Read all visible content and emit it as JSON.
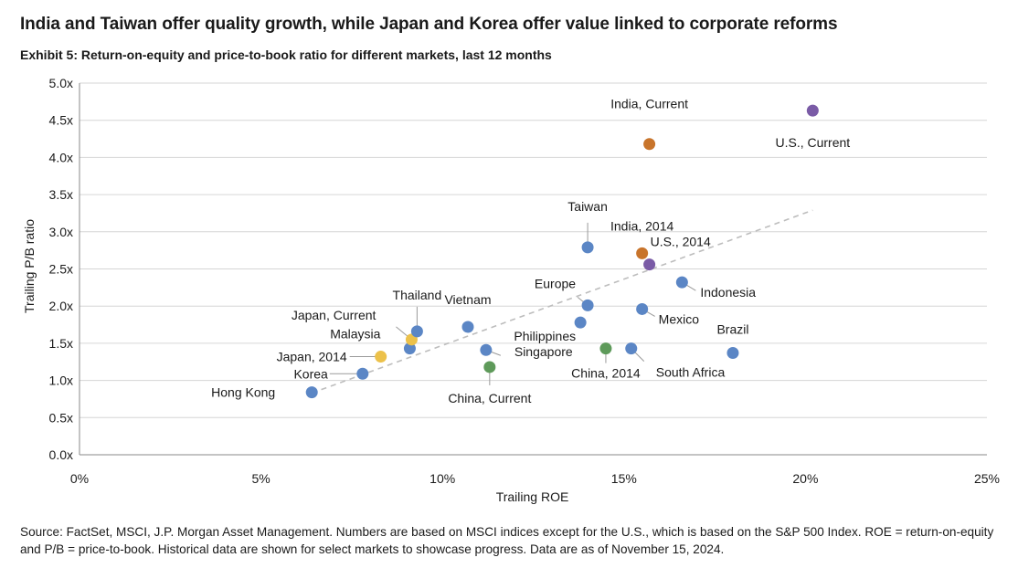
{
  "header": {
    "title": "India and Taiwan offer quality growth, while Japan and Korea offer value linked to corporate reforms",
    "subtitle": "Exhibit 5: Return-on-equity and price-to-book ratio for different markets, last 12 months"
  },
  "footer": {
    "source": "Source: FactSet, MSCI, J.P. Morgan Asset Management. Numbers are based on MSCI indices except for the U.S., which is based on the S&P 500 Index.  ROE = return-on-equity and P/B = price-to-book. Historical data are shown for select markets to showcase progress. Data are as of November 15, 2024."
  },
  "colors": {
    "blue": "#5b86c5",
    "orange": "#c8742b",
    "purple": "#7a5ba6",
    "green": "#5e9a5a",
    "yellow": "#ecc14a",
    "trend": "#bdbdbd",
    "grid": "#d6d6d6"
  },
  "chart_data": {
    "type": "scatter",
    "xlabel": "Trailing ROE",
    "ylabel": "Trailing P/B ratio",
    "xlim": [
      0,
      25
    ],
    "ylim": [
      0,
      5
    ],
    "x_ticks": [
      "0%",
      "5%",
      "10%",
      "15%",
      "20%",
      "25%"
    ],
    "y_ticks": [
      "0.0x",
      "0.5x",
      "1.0x",
      "1.5x",
      "2.0x",
      "2.5x",
      "3.0x",
      "3.5x",
      "4.0x",
      "4.5x",
      "5.0x"
    ],
    "grid": "horizontal",
    "trendline": {
      "from": [
        6.4,
        0.83
      ],
      "to": [
        20.2,
        3.29
      ]
    },
    "points": [
      {
        "label": "Hong Kong",
        "x": 6.4,
        "y": 0.84,
        "color": "blue"
      },
      {
        "label": "Korea",
        "x": 7.8,
        "y": 1.09,
        "color": "blue"
      },
      {
        "label": "Japan, 2014",
        "x": 8.3,
        "y": 1.32,
        "color": "yellow"
      },
      {
        "label": "Malaysia",
        "x": 9.1,
        "y": 1.43,
        "color": "blue"
      },
      {
        "label": "Japan, Current",
        "x": 9.15,
        "y": 1.55,
        "color": "yellow"
      },
      {
        "label": "Thailand",
        "x": 9.3,
        "y": 1.66,
        "color": "blue"
      },
      {
        "label": "Vietnam",
        "x": 10.7,
        "y": 1.72,
        "color": "blue"
      },
      {
        "label": "Singapore",
        "x": 11.2,
        "y": 1.41,
        "color": "blue"
      },
      {
        "label": "China, Current",
        "x": 11.3,
        "y": 1.18,
        "color": "green"
      },
      {
        "label": "Philippines",
        "x": 13.8,
        "y": 1.78,
        "color": "blue"
      },
      {
        "label": "Europe",
        "x": 14.0,
        "y": 2.01,
        "color": "blue"
      },
      {
        "label": "Taiwan",
        "x": 14.0,
        "y": 2.79,
        "color": "blue"
      },
      {
        "label": "China, 2014",
        "x": 14.5,
        "y": 1.43,
        "color": "green"
      },
      {
        "label": "South Africa",
        "x": 15.2,
        "y": 1.43,
        "color": "blue"
      },
      {
        "label": "India, 2014",
        "x": 15.5,
        "y": 2.71,
        "color": "orange"
      },
      {
        "label": "Mexico",
        "x": 15.5,
        "y": 1.96,
        "color": "blue"
      },
      {
        "label": "U.S., 2014",
        "x": 15.7,
        "y": 2.56,
        "color": "purple"
      },
      {
        "label": "India, Current",
        "x": 15.7,
        "y": 4.18,
        "color": "orange"
      },
      {
        "label": "Indonesia",
        "x": 16.6,
        "y": 2.32,
        "color": "blue"
      },
      {
        "label": "Brazil",
        "x": 18.0,
        "y": 1.37,
        "color": "blue"
      },
      {
        "label": "U.S., Current",
        "x": 20.2,
        "y": 4.63,
        "color": "purple"
      }
    ]
  }
}
